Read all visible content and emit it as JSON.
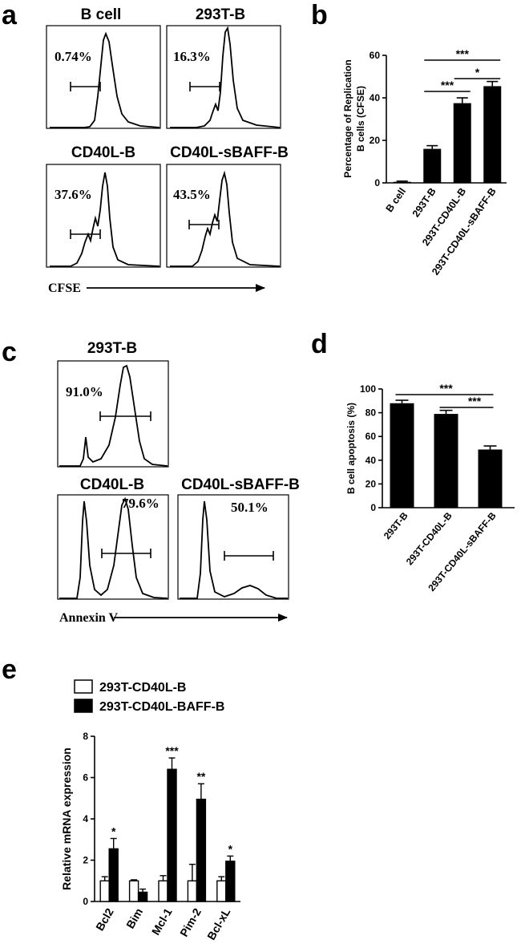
{
  "panel_labels": {
    "a": "a",
    "b": "b",
    "c": "c",
    "d": "d",
    "e": "e"
  },
  "panel_a": {
    "histograms": [
      {
        "title": "B cell",
        "percent": "0.74%"
      },
      {
        "title": "293T-B",
        "percent": "16.3%"
      },
      {
        "title": "CD40L-B",
        "percent": "37.6%"
      },
      {
        "title": "CD40L-sBAFF-B",
        "percent": "43.5%"
      }
    ],
    "axis_label": "CFSE"
  },
  "panel_c": {
    "histograms": [
      {
        "title": "293T-B",
        "percent": "91.0%"
      },
      {
        "title": "CD40L-B",
        "percent": "79.6%"
      },
      {
        "title": "CD40L-sBAFF-B",
        "percent": "50.1%"
      }
    ],
    "axis_label": "Annexin V"
  },
  "chart_data": [
    {
      "panel": "b",
      "type": "bar",
      "categories": [
        "B cell",
        "293T-B",
        "293T-CD40L-B",
        "293T-CD40L-sBAFF-B"
      ],
      "values": [
        0.5,
        16,
        37.5,
        45.5
      ],
      "errors": [
        0.3,
        1.5,
        2.5,
        2.2
      ],
      "ylabel_lines": [
        "Percentage of Replication",
        "B cells (CFSE)"
      ],
      "ylim": [
        0,
        60
      ],
      "yticks": [
        0,
        20,
        40,
        60
      ],
      "color": "#000000",
      "significance": [
        {
          "from": 1,
          "to": 3,
          "label": "***"
        },
        {
          "from": 1,
          "to": 2,
          "label": "***"
        },
        {
          "from": 2,
          "to": 3,
          "label": "*"
        }
      ]
    },
    {
      "panel": "d",
      "type": "bar",
      "categories": [
        "293T-B",
        "293T-CD40L-B",
        "293T-CD40L-sBAFF-B"
      ],
      "values": [
        88,
        79,
        49
      ],
      "errors": [
        2.5,
        3,
        3
      ],
      "ylabel": "B cell apoptosis (%)",
      "ylim": [
        0,
        100
      ],
      "yticks": [
        0,
        20,
        40,
        60,
        80,
        100
      ],
      "color": "#000000",
      "significance": [
        {
          "from": 0,
          "to": 2,
          "label": "***"
        },
        {
          "from": 1,
          "to": 2,
          "label": "***"
        }
      ]
    },
    {
      "panel": "e",
      "type": "bar",
      "categories": [
        "Bcl2",
        "Bim",
        "Mcl-1",
        "Pim-2",
        "Bcl-xL"
      ],
      "series": [
        {
          "name": "293T-CD40L-B",
          "values": [
            1,
            1,
            1,
            1,
            1
          ],
          "errors": [
            0.2,
            0.05,
            0.25,
            0.8,
            0.2
          ],
          "fill": "#ffffff"
        },
        {
          "name": "293T-CD40L-BAFF-B",
          "values": [
            2.55,
            0.45,
            6.4,
            4.95,
            1.95
          ],
          "errors": [
            0.5,
            0.15,
            0.55,
            0.75,
            0.25
          ],
          "fill": "#000000"
        }
      ],
      "significance_labels": [
        "*",
        "",
        "***",
        "**",
        "*"
      ],
      "ylabel": "Relative mRNA expression",
      "ylim": [
        0,
        8
      ],
      "yticks": [
        0,
        2,
        4,
        6,
        8
      ],
      "legend": "top-left"
    }
  ]
}
